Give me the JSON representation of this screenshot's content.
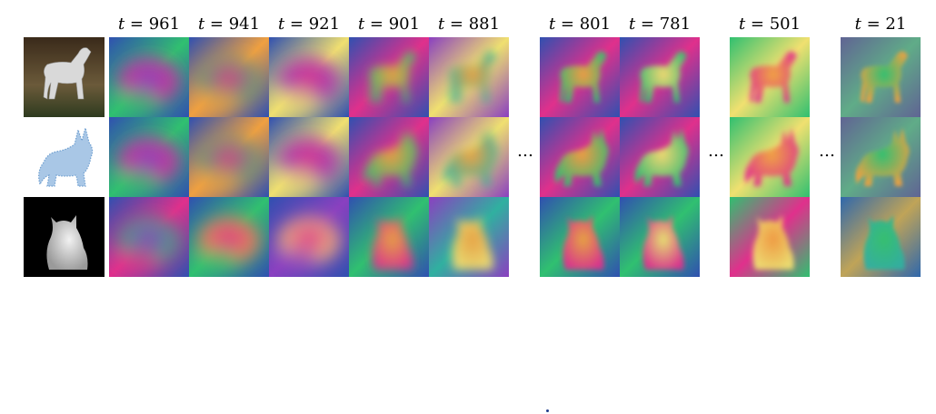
{
  "figure": {
    "timestep_label_prefix": "t",
    "timestep_label_eq": " = ",
    "timesteps": [
      "961",
      "941",
      "921",
      "901",
      "881",
      "801",
      "781",
      "501",
      "21"
    ],
    "gap_marks": [
      "…",
      "…",
      "…"
    ],
    "rows": [
      {
        "subject": "horse-photo",
        "reference_kind": "photo",
        "reference_palette": [
          "#3a2a1a",
          "#6b5a3a",
          "#d9d9d9",
          "#2e3b1f"
        ]
      },
      {
        "subject": "wolf-mesh",
        "reference_kind": "point-cloud",
        "reference_palette": [
          "#ffffff",
          "#a9c7e6",
          "#6f9fd0"
        ]
      },
      {
        "subject": "cat-depth",
        "reference_kind": "depth-map",
        "reference_palette": [
          "#000000",
          "#f2f2f2",
          "#9a9a9a"
        ]
      }
    ],
    "column_stage": [
      "noisy",
      "noisy",
      "noisy",
      "forming",
      "forming",
      "formed",
      "formed",
      "formed",
      "denoised"
    ],
    "palette": {
      "magenta": "#e0308c",
      "orange": "#f0a040",
      "green": "#30c070",
      "blue": "#3050b0",
      "purple": "#8a40c0",
      "yellow": "#f0e070",
      "teal": "#30b0a0"
    }
  }
}
